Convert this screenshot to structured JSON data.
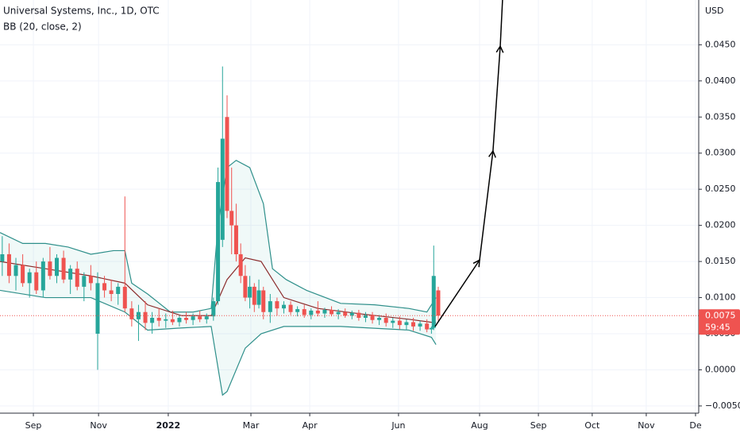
{
  "chart_data": {
    "type": "candlestick",
    "title": "Universal Systems, Inc., 1D, OTC",
    "indicator": "BB (20, close, 2)",
    "y_unit": "USD",
    "ylim": [
      -0.006,
      0.0512
    ],
    "yticks": [
      {
        "value": -0.005,
        "label": "−0.0050"
      },
      {
        "value": 0,
        "label": "0.0000"
      },
      {
        "value": 0.005,
        "label": "0.0050"
      },
      {
        "value": 0.01,
        "label": "0.0100"
      },
      {
        "value": 0.015,
        "label": "0.0150"
      },
      {
        "value": 0.02,
        "label": "0.0200"
      },
      {
        "value": 0.025,
        "label": "0.0250"
      },
      {
        "value": 0.03,
        "label": "0.0300"
      },
      {
        "value": 0.035,
        "label": "0.0350"
      },
      {
        "value": 0.04,
        "label": "0.0400"
      },
      {
        "value": 0.045,
        "label": "0.0450"
      }
    ],
    "xlim": [
      0,
      307.7
    ],
    "xticks": [
      {
        "value": 14.7,
        "label": "Sep"
      },
      {
        "value": 43.4,
        "label": "Nov"
      },
      {
        "value": 74.1,
        "label": "2022"
      },
      {
        "value": 110.5,
        "label": "Mar"
      },
      {
        "value": 136.4,
        "label": "Apr"
      },
      {
        "value": 175.5,
        "label": "Jun"
      },
      {
        "value": 211.2,
        "label": "Aug"
      },
      {
        "value": 237.1,
        "label": "Sep"
      },
      {
        "value": 260.8,
        "label": "Oct"
      },
      {
        "value": 284.6,
        "label": "Nov"
      },
      {
        "value": 306.3,
        "label": "De"
      }
    ],
    "grid": true,
    "up_color": "#26a69a",
    "down_color": "#ef5350",
    "candles": {
      "x": [
        1,
        4,
        7,
        10,
        13,
        16,
        19,
        22,
        25,
        28,
        31,
        34,
        37,
        40,
        43,
        46,
        49,
        52,
        55,
        58,
        61,
        64,
        67,
        70,
        73,
        76,
        79,
        82,
        85,
        88,
        91,
        94,
        96,
        98,
        100,
        102,
        104,
        106,
        108,
        110,
        112,
        114,
        116,
        119,
        122,
        125,
        128,
        131,
        134,
        137,
        140,
        143,
        146,
        149,
        152,
        155,
        158,
        161,
        164,
        167,
        170,
        173,
        176,
        179,
        182,
        185,
        188,
        190,
        191,
        193
      ],
      "open": [
        0.015,
        0.016,
        0.013,
        0.0145,
        0.012,
        0.0135,
        0.011,
        0.015,
        0.013,
        0.0155,
        0.0125,
        0.014,
        0.0115,
        0.013,
        0.005,
        0.012,
        0.011,
        0.0105,
        0.0115,
        0.0085,
        0.007,
        0.008,
        0.0065,
        0.0072,
        0.0068,
        0.007,
        0.0066,
        0.0072,
        0.0069,
        0.0074,
        0.007,
        0.0074,
        0.0095,
        0.018,
        0.035,
        0.022,
        0.02,
        0.016,
        0.013,
        0.01,
        0.0115,
        0.009,
        0.011,
        0.008,
        0.0095,
        0.0085,
        0.009,
        0.008,
        0.0084,
        0.0076,
        0.0082,
        0.0078,
        0.0083,
        0.0077,
        0.008,
        0.0075,
        0.0079,
        0.0072,
        0.0076,
        0.0069,
        0.0072,
        0.0065,
        0.0068,
        0.0062,
        0.0066,
        0.006,
        0.0064,
        0.0056,
        0.0058,
        0.011
      ],
      "high": [
        0.0185,
        0.0175,
        0.0155,
        0.016,
        0.014,
        0.015,
        0.0155,
        0.017,
        0.016,
        0.0165,
        0.0145,
        0.015,
        0.0135,
        0.0145,
        0.0135,
        0.013,
        0.0125,
        0.012,
        0.024,
        0.0095,
        0.009,
        0.0095,
        0.008,
        0.0085,
        0.0078,
        0.0082,
        0.0076,
        0.008,
        0.0078,
        0.0082,
        0.0078,
        0.01,
        0.028,
        0.042,
        0.038,
        0.028,
        0.023,
        0.0175,
        0.0145,
        0.013,
        0.012,
        0.0125,
        0.0115,
        0.0105,
        0.01,
        0.0095,
        0.0095,
        0.0088,
        0.009,
        0.0085,
        0.0095,
        0.0086,
        0.0088,
        0.0084,
        0.0085,
        0.0082,
        0.0083,
        0.008,
        0.008,
        0.0076,
        0.0078,
        0.0072,
        0.0074,
        0.007,
        0.0072,
        0.0068,
        0.007,
        0.006,
        0.0172,
        0.0115
      ],
      "low": [
        0.013,
        0.012,
        0.011,
        0.0115,
        0.01,
        0.0105,
        0.01,
        0.0125,
        0.012,
        0.012,
        0.0105,
        0.011,
        0.0095,
        0.011,
        0,
        0.01,
        0.0095,
        0.009,
        0.008,
        0.006,
        0.004,
        0.0055,
        0.005,
        0.006,
        0.0058,
        0.0062,
        0.006,
        0.0064,
        0.0062,
        0.0066,
        0.0064,
        0.0068,
        0.009,
        0.017,
        0.021,
        0.016,
        0.015,
        0.012,
        0.0095,
        0.0085,
        0.008,
        0.0085,
        0.007,
        0.0065,
        0.0075,
        0.0078,
        0.0076,
        0.0074,
        0.0072,
        0.007,
        0.0074,
        0.0072,
        0.0074,
        0.007,
        0.0072,
        0.007,
        0.0068,
        0.0066,
        0.0064,
        0.0062,
        0.006,
        0.0058,
        0.0056,
        0.0055,
        0.0054,
        0.0054,
        0.0052,
        0.005,
        0.0055,
        0.0068
      ],
      "close": [
        0.016,
        0.013,
        0.0145,
        0.012,
        0.0135,
        0.011,
        0.015,
        0.013,
        0.0155,
        0.0125,
        0.014,
        0.0115,
        0.013,
        0.012,
        0.012,
        0.011,
        0.0105,
        0.0115,
        0.0085,
        0.007,
        0.008,
        0.0065,
        0.0072,
        0.0068,
        0.007,
        0.0066,
        0.0072,
        0.0069,
        0.0074,
        0.007,
        0.0074,
        0.0095,
        0.026,
        0.032,
        0.022,
        0.02,
        0.016,
        0.013,
        0.01,
        0.0115,
        0.009,
        0.011,
        0.008,
        0.0095,
        0.0085,
        0.009,
        0.008,
        0.0084,
        0.0076,
        0.0082,
        0.0078,
        0.0083,
        0.0077,
        0.008,
        0.0075,
        0.0079,
        0.0072,
        0.0076,
        0.0069,
        0.0072,
        0.0065,
        0.0068,
        0.0062,
        0.0066,
        0.006,
        0.0064,
        0.0056,
        0.0058,
        0.013,
        0.0075
      ]
    },
    "bollinger": {
      "fill": "rgba(38,166,154,0.07)",
      "upper": {
        "color": "#2e8f8a",
        "x": [
          0,
          10,
          20,
          30,
          40,
          50,
          55,
          58,
          65,
          75,
          85,
          93,
          96,
          100,
          104,
          110,
          116,
          120,
          126,
          135,
          150,
          165,
          180,
          188,
          192
        ],
        "values": [
          0.019,
          0.0175,
          0.0175,
          0.017,
          0.016,
          0.0165,
          0.0165,
          0.012,
          0.0105,
          0.008,
          0.008,
          0.0085,
          0.02,
          0.028,
          0.029,
          0.028,
          0.023,
          0.014,
          0.0125,
          0.011,
          0.0092,
          0.009,
          0.0085,
          0.008,
          0.01
        ]
      },
      "basis": {
        "color": "#8b2a2a",
        "x": [
          0,
          20,
          40,
          55,
          65,
          80,
          93,
          100,
          108,
          115,
          125,
          140,
          160,
          180,
          192
        ],
        "values": [
          0.015,
          0.014,
          0.013,
          0.012,
          0.009,
          0.0075,
          0.0075,
          0.0125,
          0.0155,
          0.015,
          0.01,
          0.0085,
          0.0077,
          0.007,
          0.0065
        ]
      },
      "lower": {
        "color": "#2e8f8a",
        "x": [
          0,
          20,
          40,
          55,
          65,
          80,
          93,
          98,
          100,
          108,
          115,
          125,
          150,
          180,
          190,
          192
        ],
        "values": [
          0.011,
          0.01,
          0.01,
          0.008,
          0.0055,
          0.0058,
          0.006,
          -0.0035,
          -0.003,
          0.003,
          0.005,
          0.006,
          0.006,
          0.0055,
          0.0045,
          0.0035
        ]
      }
    },
    "drawing": {
      "color": "#000000",
      "x": [
        191.6,
        211.2,
        217.1,
        220.3,
        221.3
      ],
      "y": [
        0.006,
        0.0152,
        0.0303,
        0.0448,
        0.0512
      ]
    },
    "last_price": {
      "value": 0.0075,
      "color": "#ef5350",
      "countdown": "59:45"
    }
  }
}
